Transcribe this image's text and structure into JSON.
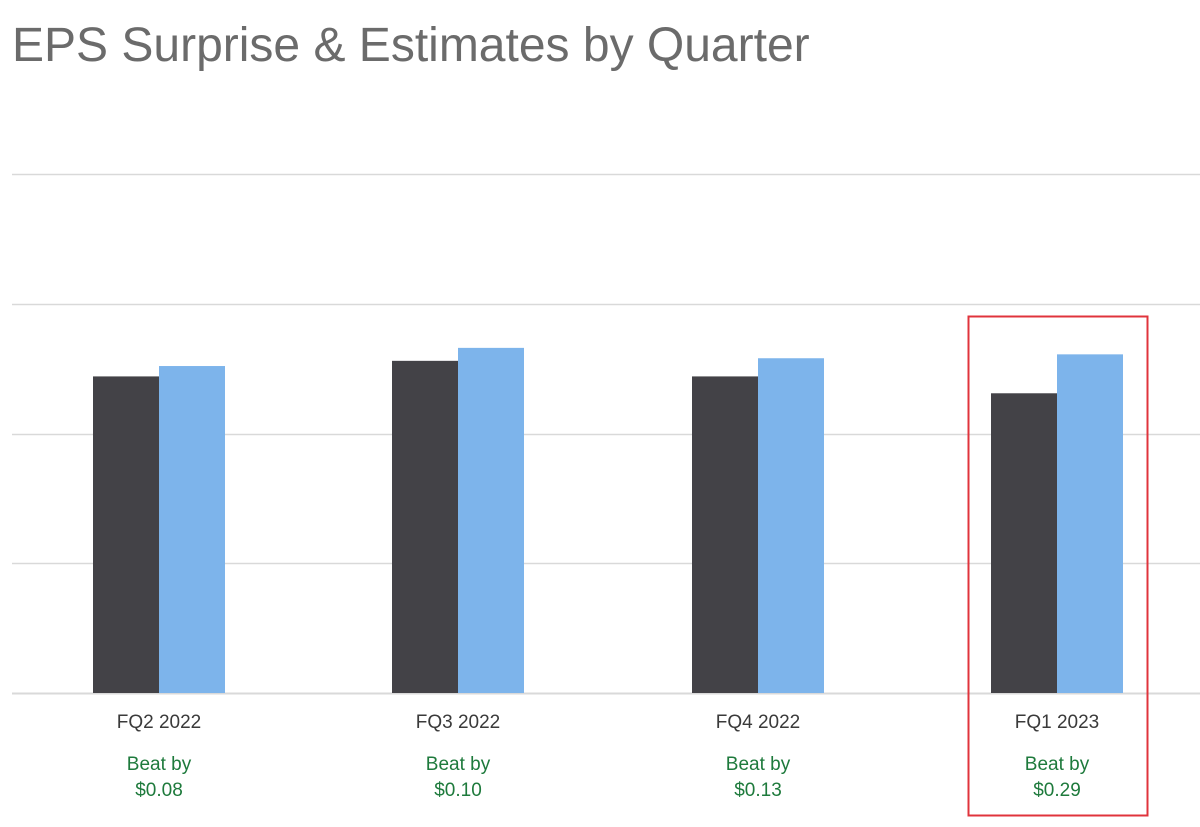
{
  "title": "EPS Surprise & Estimates by Quarter",
  "colors": {
    "actual": "#434247",
    "estimate": "#7db4eb",
    "grid": "#d9d9d9",
    "beat_text": "#1e7a3c",
    "highlight_border": "#e0343c"
  },
  "chart_data": {
    "type": "bar",
    "categories": [
      "FQ2 2022",
      "FQ3 2022",
      "FQ4 2022",
      "FQ1 2023"
    ],
    "series": [
      {
        "values": [
          2.44,
          2.56,
          2.44,
          2.31
        ]
      },
      {
        "values": [
          2.52,
          2.66,
          2.58,
          2.61
        ]
      }
    ],
    "ylim": [
      0,
      4
    ],
    "grid": true,
    "annotations": [
      {
        "line1": "Beat by",
        "line2": "$0.08"
      },
      {
        "line1": "Beat by",
        "line2": "$0.10"
      },
      {
        "line1": "Beat by",
        "line2": "$0.13"
      },
      {
        "line1": "Beat by",
        "line2": "$0.29"
      }
    ],
    "highlighted_category": "FQ1 2023"
  }
}
